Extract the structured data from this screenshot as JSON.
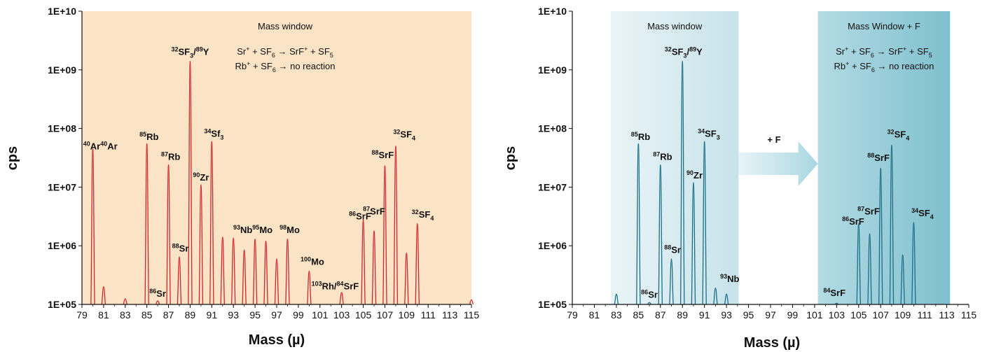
{
  "colors": {
    "left_background": "#fbe3c5",
    "left_trace": "#d0282c",
    "right_trace": "#1c6f86",
    "right_window_light": "#e2eff4",
    "right_window_dark": "#88c6d2",
    "arrow": "#b5dde6"
  },
  "chart_data": [
    {
      "type": "line",
      "id": "left",
      "xlabel": "Mass (µ)",
      "ylabel": "cps",
      "xlim": [
        79,
        115
      ],
      "ylim": [
        100000,
        10000000000
      ],
      "log_y": true,
      "x_ticks": [
        "79",
        "81",
        "83",
        "85",
        "87",
        "89",
        "91",
        "93",
        "95",
        "97",
        "99",
        "101",
        "103",
        "105",
        "107",
        "109",
        "111",
        "113",
        "115"
      ],
      "y_ticks": [
        "1E+05",
        "1E+06",
        "1E+07",
        "1E+08",
        "1E+09",
        "1E+10"
      ],
      "window_title": "Mass window",
      "reactions": [
        {
          "parts": [
            {
              "t": "Sr"
            },
            {
              "sup": "+"
            },
            {
              "t": " + SF"
            },
            {
              "sub": "6"
            },
            {
              "t": " → SrF"
            },
            {
              "sup": "+"
            },
            {
              "t": " + SF"
            },
            {
              "sub": "5"
            }
          ]
        },
        {
          "parts": [
            {
              "t": "Rb"
            },
            {
              "sup": "+"
            },
            {
              "t": " + SF"
            },
            {
              "sub": "6"
            },
            {
              "t": " → no reaction"
            }
          ]
        }
      ],
      "peaks": [
        {
          "x": 80,
          "y": 45000000
        },
        {
          "x": 81,
          "y": 200000
        },
        {
          "x": 83,
          "y": 125000
        },
        {
          "x": 85,
          "y": 55000000
        },
        {
          "x": 86,
          "y": 115000
        },
        {
          "x": 87,
          "y": 24000000
        },
        {
          "x": 88,
          "y": 650000
        },
        {
          "x": 89,
          "y": 1400000000
        },
        {
          "x": 90,
          "y": 11000000
        },
        {
          "x": 91,
          "y": 60000000
        },
        {
          "x": 92,
          "y": 1400000
        },
        {
          "x": 93,
          "y": 1350000
        },
        {
          "x": 94,
          "y": 850000
        },
        {
          "x": 95,
          "y": 1300000
        },
        {
          "x": 96,
          "y": 1200000
        },
        {
          "x": 97,
          "y": 600000
        },
        {
          "x": 98,
          "y": 1300000
        },
        {
          "x": 100,
          "y": 370000
        },
        {
          "x": 103,
          "y": 160000
        },
        {
          "x": 105,
          "y": 2800000
        },
        {
          "x": 106,
          "y": 1800000
        },
        {
          "x": 107,
          "y": 23000000
        },
        {
          "x": 108,
          "y": 50000000
        },
        {
          "x": 109,
          "y": 750000
        },
        {
          "x": 110,
          "y": 2400000
        },
        {
          "x": 115,
          "y": 120000
        }
      ],
      "labels": [
        {
          "x": 80.7,
          "y": 44000000,
          "parts": [
            {
              "sup": "40"
            },
            {
              "t": "Ar"
            },
            {
              "sup": "40"
            },
            {
              "t": "Ar"
            }
          ]
        },
        {
          "x": 85.2,
          "y": 64000000,
          "parts": [
            {
              "sup": "85"
            },
            {
              "t": "Rb"
            }
          ]
        },
        {
          "x": 87.2,
          "y": 29000000,
          "parts": [
            {
              "sup": "87"
            },
            {
              "t": "Rb"
            }
          ]
        },
        {
          "x": 89.0,
          "y": 1800000000,
          "parts": [
            {
              "sup": "32"
            },
            {
              "t": "SF"
            },
            {
              "sub": "3"
            },
            {
              "t": "/"
            },
            {
              "sup": "89"
            },
            {
              "t": "Y"
            }
          ]
        },
        {
          "x": 91.2,
          "y": 72000000,
          "parts": [
            {
              "sup": "34"
            },
            {
              "t": "Sf"
            },
            {
              "sub": "3"
            }
          ]
        },
        {
          "x": 90.0,
          "y": 13000000,
          "parts": [
            {
              "sup": "90"
            },
            {
              "t": "Zr"
            }
          ]
        },
        {
          "x": 88.1,
          "y": 800000,
          "parts": [
            {
              "sup": "88"
            },
            {
              "t": "Sr"
            }
          ]
        },
        {
          "x": 86.0,
          "y": 135000,
          "parts": [
            {
              "sup": "86"
            },
            {
              "t": "Sr"
            }
          ]
        },
        {
          "x": 94.8,
          "y": 1650000,
          "parts": [
            {
              "sup": "93"
            },
            {
              "t": "Nb"
            },
            {
              "sup": "95"
            },
            {
              "t": "Mo"
            }
          ]
        },
        {
          "x": 98.2,
          "y": 1650000,
          "parts": [
            {
              "sup": "98"
            },
            {
              "t": "Mo"
            }
          ]
        },
        {
          "x": 100.3,
          "y": 470000,
          "parts": [
            {
              "sup": "100"
            },
            {
              "t": "Mo"
            }
          ]
        },
        {
          "x": 102.4,
          "y": 180000,
          "parts": [
            {
              "sup": "103"
            },
            {
              "t": "Rh/"
            },
            {
              "sup": "84"
            },
            {
              "t": "SrF"
            }
          ]
        },
        {
          "x": 104.7,
          "y": 2800000,
          "parts": [
            {
              "sup": "86"
            },
            {
              "t": "SrF"
            }
          ]
        },
        {
          "x": 106.0,
          "y": 3400000,
          "parts": [
            {
              "sup": "87"
            },
            {
              "t": "SrF"
            }
          ]
        },
        {
          "x": 106.8,
          "y": 31000000,
          "parts": [
            {
              "sup": "88"
            },
            {
              "t": "SrF"
            }
          ]
        },
        {
          "x": 108.8,
          "y": 70000000,
          "parts": [
            {
              "sup": "32"
            },
            {
              "t": "SF"
            },
            {
              "sub": "4"
            }
          ]
        },
        {
          "x": 110.5,
          "y": 3000000,
          "parts": [
            {
              "sup": "32"
            },
            {
              "t": "SF"
            },
            {
              "sub": "4"
            }
          ]
        }
      ]
    },
    {
      "type": "line",
      "id": "right",
      "xlabel": "Mass (µ)",
      "ylabel": "cps",
      "xlim": [
        79,
        115
      ],
      "ylim": [
        100000,
        10000000000
      ],
      "log_y": true,
      "x_ticks": [
        "79",
        "81",
        "83",
        "85",
        "87",
        "89",
        "91",
        "93",
        "95",
        "97",
        "99",
        "101",
        "103",
        "105",
        "107",
        "109",
        "111",
        "113",
        "115"
      ],
      "y_ticks": [
        "1E+05",
        "1E+06",
        "1E+07",
        "1E+08",
        "1E+09",
        "1E+10"
      ],
      "window_left": {
        "title": "Mass window",
        "x_range": [
          82.5,
          94.1
        ]
      },
      "window_right": {
        "title": "Mass Window + F",
        "x_range": [
          101.3,
          113.3
        ]
      },
      "arrow_label": "+ F",
      "reactions": [
        {
          "parts": [
            {
              "t": "Sr"
            },
            {
              "sup": "+"
            },
            {
              "t": " + SF"
            },
            {
              "sub": "6"
            },
            {
              "t": " → SrF"
            },
            {
              "sup": "+"
            },
            {
              "t": " + SF"
            },
            {
              "sub": "5"
            }
          ]
        },
        {
          "parts": [
            {
              "t": "Rb"
            },
            {
              "sup": "+"
            },
            {
              "t": " + SF"
            },
            {
              "sub": "6"
            },
            {
              "t": " → no reaction"
            }
          ]
        }
      ],
      "peaks": [
        {
          "x": 83,
          "y": 150000
        },
        {
          "x": 85,
          "y": 55000000
        },
        {
          "x": 86,
          "y": 108000
        },
        {
          "x": 87,
          "y": 24000000
        },
        {
          "x": 88,
          "y": 600000
        },
        {
          "x": 89,
          "y": 1400000000
        },
        {
          "x": 90,
          "y": 12000000
        },
        {
          "x": 91,
          "y": 60000000
        },
        {
          "x": 92,
          "y": 190000
        },
        {
          "x": 93,
          "y": 150000
        },
        {
          "x": 103,
          "y": 105000
        },
        {
          "x": 105,
          "y": 2400000
        },
        {
          "x": 106,
          "y": 1600000
        },
        {
          "x": 107,
          "y": 21000000
        },
        {
          "x": 108,
          "y": 52000000
        },
        {
          "x": 109,
          "y": 700000
        },
        {
          "x": 110,
          "y": 2500000
        }
      ],
      "labels": [
        {
          "x": 85.2,
          "y": 64000000,
          "parts": [
            {
              "sup": "85"
            },
            {
              "t": "Rb"
            }
          ]
        },
        {
          "x": 87.2,
          "y": 29000000,
          "parts": [
            {
              "sup": "87"
            },
            {
              "t": "Rb"
            }
          ]
        },
        {
          "x": 89.1,
          "y": 1800000000,
          "parts": [
            {
              "sup": "32"
            },
            {
              "t": "SF"
            },
            {
              "sub": "3"
            },
            {
              "t": "/"
            },
            {
              "sup": "89"
            },
            {
              "t": "Y"
            }
          ]
        },
        {
          "x": 91.4,
          "y": 72000000,
          "parts": [
            {
              "sup": "34"
            },
            {
              "t": "SF"
            },
            {
              "sub": "3"
            }
          ]
        },
        {
          "x": 90.1,
          "y": 14000000,
          "parts": [
            {
              "sup": "90"
            },
            {
              "t": "Zr"
            }
          ]
        },
        {
          "x": 88.1,
          "y": 750000,
          "parts": [
            {
              "sup": "88"
            },
            {
              "t": "Sr"
            }
          ]
        },
        {
          "x": 86.0,
          "y": 130000,
          "parts": [
            {
              "sup": "86"
            },
            {
              "t": "Sr"
            }
          ]
        },
        {
          "x": 93.3,
          "y": 240000,
          "parts": [
            {
              "sup": "93"
            },
            {
              "t": "Nb"
            }
          ]
        },
        {
          "x": 102.8,
          "y": 140000,
          "parts": [
            {
              "sup": "84"
            },
            {
              "t": "SrF"
            }
          ]
        },
        {
          "x": 104.5,
          "y": 2300000,
          "parts": [
            {
              "sup": "86"
            },
            {
              "t": "SrF"
            }
          ]
        },
        {
          "x": 105.9,
          "y": 3400000,
          "parts": [
            {
              "sup": "87"
            },
            {
              "t": "SrF"
            }
          ]
        },
        {
          "x": 106.8,
          "y": 28000000,
          "parts": [
            {
              "sup": "88"
            },
            {
              "t": "SrF"
            }
          ]
        },
        {
          "x": 108.6,
          "y": 70000000,
          "parts": [
            {
              "sup": "32"
            },
            {
              "t": "SF"
            },
            {
              "sub": "4"
            }
          ]
        },
        {
          "x": 110.8,
          "y": 3200000,
          "parts": [
            {
              "sup": "34"
            },
            {
              "t": "SF"
            },
            {
              "sub": "4"
            }
          ]
        }
      ]
    }
  ]
}
